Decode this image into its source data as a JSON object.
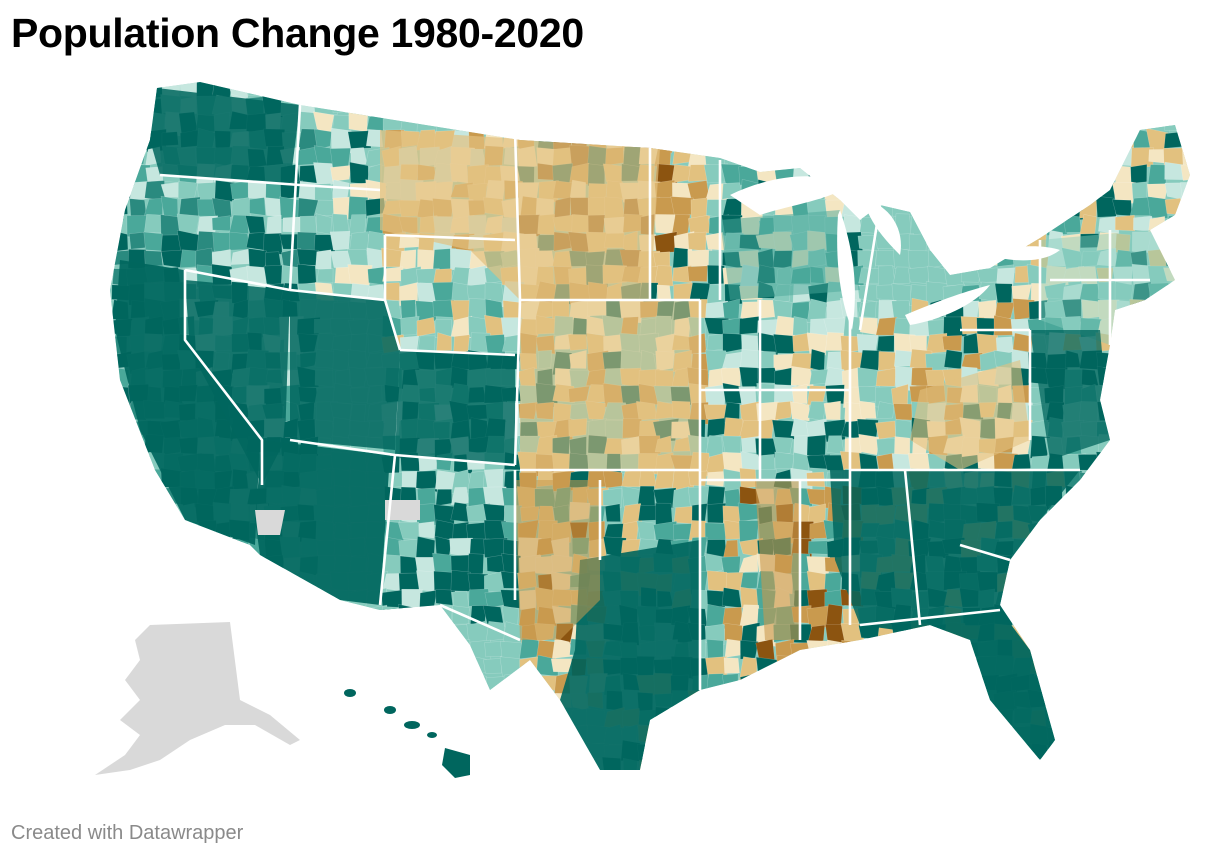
{
  "title": "Population Change 1980-2020",
  "credit": "Created with Datawrapper",
  "colors": {
    "strong_growth": "#00665e",
    "growth": "#2a8a7f",
    "moderate_growth": "#4aa89a",
    "slight_growth": "#86cbbd",
    "minimal_growth": "#c6e7df",
    "slight_decline": "#f4e6c2",
    "decline": "#e2c17f",
    "strong_decline": "#c99a4e",
    "severe_decline": "#8c5410",
    "no_data": "#d9d9d9",
    "borders": "#ffffff"
  },
  "map": {
    "regions": [
      {
        "name": "Pacific Northwest",
        "trend": "strong_growth"
      },
      {
        "name": "California",
        "trend": "strong_growth"
      },
      {
        "name": "Nevada",
        "trend": "strong_growth"
      },
      {
        "name": "Arizona",
        "trend": "strong_growth"
      },
      {
        "name": "Utah",
        "trend": "strong_growth"
      },
      {
        "name": "Colorado",
        "trend": "strong_growth"
      },
      {
        "name": "Montana",
        "trend": "decline"
      },
      {
        "name": "Wyoming",
        "trend": "minimal_growth"
      },
      {
        "name": "New Mexico",
        "trend": "moderate_growth"
      },
      {
        "name": "Northern Plains",
        "trend": "strong_decline"
      },
      {
        "name": "Central Plains",
        "trend": "decline"
      },
      {
        "name": "Texas",
        "trend": "strong_growth"
      },
      {
        "name": "Midwest",
        "trend": "slight_decline"
      },
      {
        "name": "Mississippi Delta",
        "trend": "strong_decline"
      },
      {
        "name": "Southeast",
        "trend": "strong_growth"
      },
      {
        "name": "Florida",
        "trend": "strong_growth"
      },
      {
        "name": "Appalachia",
        "trend": "decline"
      },
      {
        "name": "Northeast",
        "trend": "slight_growth"
      },
      {
        "name": "Alaska",
        "trend": "no_data"
      },
      {
        "name": "Hawaii",
        "trend": "strong_growth"
      }
    ]
  }
}
